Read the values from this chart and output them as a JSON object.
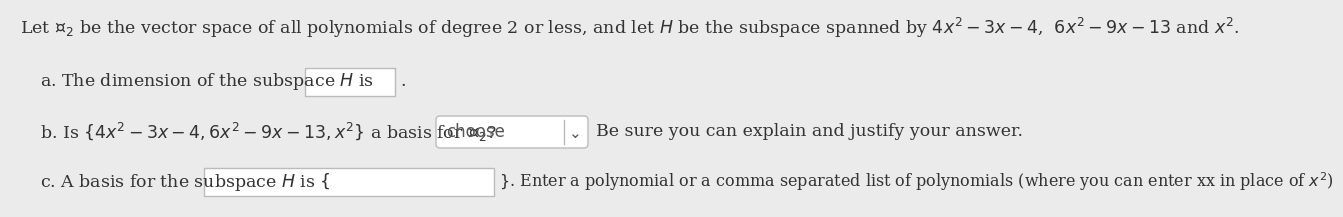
{
  "background_color": "#ebebeb",
  "title_text": "Let $\\mathcal{P}_2$ be the vector space of all polynomials of degree 2 or less, and let $H$ be the subspace spanned by $4x^2 - 3x - 4$,  $6x^2 - 9x - 13$ and $x^2$.",
  "title_color": "#333333",
  "title_fontsize": 12.5,
  "label_a_text": "a. The dimension of the subspace $H$ is",
  "label_b_text": "b. Is $\\{4x^2 - 3x - 4, 6x^2 - 9x - 13, x^2\\}$ a basis for $\\mathcal{P}_2$?",
  "label_c_text": "c. A basis for the subspace $H$ is $\\{$",
  "label_color": "#333333",
  "label_fontsize": 12.5,
  "choose_text": "choose",
  "choose_color": "#555555",
  "choose_fontsize": 12.0,
  "be_sure_text": "Be sure you can explain and justify your answer.",
  "be_sure_color": "#333333",
  "be_sure_fontsize": 12.5,
  "enter_poly_text": "$\\}$. Enter a polynomial or a comma separated list of polynomials (where you can enter xx in place of $x^2$)",
  "enter_poly_color": "#333333",
  "enter_poly_fontsize": 11.5,
  "period_text": ".",
  "box_color": "#ffffff",
  "box_edge_color": "#bbbbbb",
  "dropdown_arrow": "⌄"
}
